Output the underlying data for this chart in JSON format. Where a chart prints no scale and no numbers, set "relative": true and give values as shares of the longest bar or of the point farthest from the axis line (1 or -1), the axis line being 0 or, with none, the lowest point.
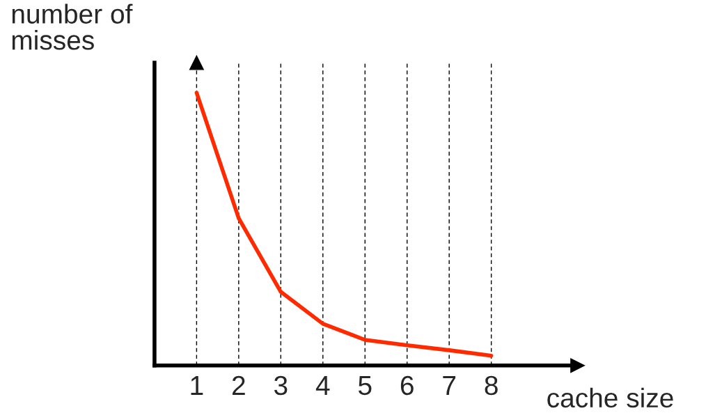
{
  "chart_data": {
    "type": "line",
    "relative": true,
    "xlabel": "cache size",
    "ylabel": "number of\nmisses",
    "categories": [
      "1",
      "2",
      "3",
      "4",
      "5",
      "6",
      "7",
      "8"
    ],
    "series": [
      {
        "color": "#ff2a00",
        "values": [
          1,
          0.54,
          0.27,
          0.153,
          0.094,
          0.074,
          0.056,
          0.036
        ]
      }
    ],
    "grid": "x",
    "line_style": "solid",
    "marker": "none"
  }
}
